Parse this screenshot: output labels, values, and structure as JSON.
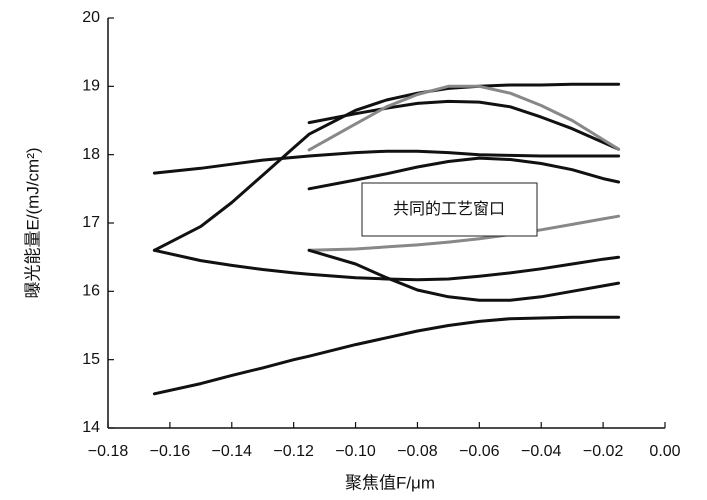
{
  "chart_data": {
    "type": "line",
    "x_label": "聚焦值F/μm",
    "y_label": "曝光能量E/(mJ/cm²)",
    "annotation": "共同的工艺窗口",
    "x": [
      -0.165,
      -0.15,
      -0.14,
      -0.13,
      -0.12,
      -0.115,
      -0.1,
      -0.09,
      -0.08,
      -0.07,
      -0.06,
      -0.05,
      -0.04,
      -0.03,
      -0.02,
      -0.015
    ],
    "series": [
      {
        "color": "#111111",
        "values": [
          14.5,
          14.65,
          14.77,
          14.88,
          15.0,
          15.05,
          15.22,
          15.32,
          15.42,
          15.5,
          15.56,
          15.6,
          15.61,
          15.62,
          15.62,
          15.62
        ]
      },
      {
        "color": "#111111",
        "values": [
          17.73,
          17.8,
          17.86,
          17.92,
          17.96,
          17.98,
          18.03,
          18.05,
          18.05,
          18.03,
          18.0,
          17.99,
          17.98,
          17.98,
          17.98,
          17.98
        ]
      },
      {
        "color": "#111111",
        "values": [
          16.6,
          16.95,
          17.3,
          17.7,
          18.1,
          18.3,
          18.65,
          18.8,
          18.9,
          18.97,
          19.0,
          19.02,
          19.02,
          19.03,
          19.03,
          19.03
        ]
      },
      {
        "color": "#111111",
        "values": [
          16.6,
          16.45,
          16.38,
          16.32,
          16.27,
          16.25,
          16.2,
          16.18,
          16.17,
          16.18,
          16.22,
          16.27,
          16.33,
          16.4,
          16.47,
          16.5
        ]
      },
      {
        "color": "#111111",
        "values": [
          null,
          null,
          null,
          null,
          null,
          18.47,
          18.6,
          18.68,
          18.75,
          18.78,
          18.77,
          18.7,
          18.55,
          18.38,
          18.18,
          18.08
        ]
      },
      {
        "color": "#888888",
        "values": [
          null,
          null,
          null,
          null,
          null,
          18.07,
          18.45,
          18.7,
          18.88,
          19.0,
          19.0,
          18.9,
          18.72,
          18.5,
          18.22,
          18.08
        ]
      },
      {
        "color": "#111111",
        "values": [
          null,
          null,
          null,
          null,
          null,
          17.5,
          17.63,
          17.72,
          17.82,
          17.9,
          17.95,
          17.93,
          17.87,
          17.78,
          17.65,
          17.6
        ]
      },
      {
        "color": "#888888",
        "values": [
          null,
          null,
          null,
          null,
          null,
          16.6,
          16.62,
          16.65,
          16.68,
          16.72,
          16.77,
          16.83,
          16.9,
          16.98,
          17.06,
          17.1
        ]
      },
      {
        "color": "#111111",
        "values": [
          null,
          null,
          null,
          null,
          null,
          16.6,
          16.4,
          16.2,
          16.02,
          15.92,
          15.87,
          15.87,
          15.92,
          16.0,
          16.08,
          16.12
        ]
      }
    ],
    "xlim": [
      -0.18,
      0.0
    ],
    "xticks": [
      {
        "value": -0.18,
        "label": "−0.18"
      },
      {
        "value": -0.16,
        "label": "−0.16"
      },
      {
        "value": -0.14,
        "label": "−0.14"
      },
      {
        "value": -0.12,
        "label": "−0.12"
      },
      {
        "value": -0.1,
        "label": "−0.10"
      },
      {
        "value": -0.08,
        "label": "−0.08"
      },
      {
        "value": -0.06,
        "label": "−0.06"
      },
      {
        "value": -0.04,
        "label": "−0.04"
      },
      {
        "value": -0.02,
        "label": "−0.02"
      },
      {
        "value": 0.0,
        "label": "0.00"
      }
    ],
    "ylim": [
      14,
      20
    ],
    "yticks": [
      14,
      15,
      16,
      17,
      18,
      19,
      20
    ],
    "grid": false
  }
}
